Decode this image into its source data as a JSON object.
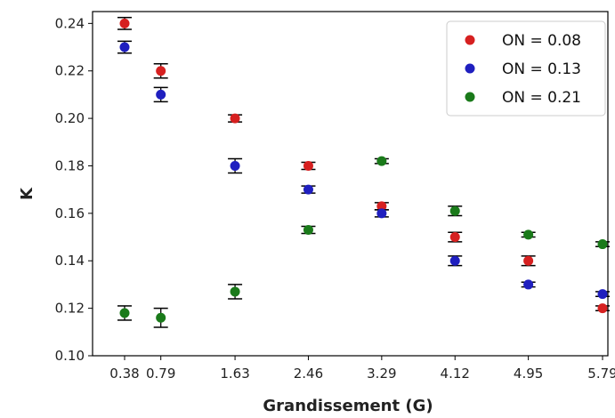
{
  "chart_data": {
    "type": "scatter",
    "xlabel": "Grandissement (G)",
    "ylabel": "K",
    "x_tick_labels": [
      "0.38",
      "0.79",
      "1.63",
      "2.46",
      "3.29",
      "4.12",
      "4.95",
      "5.79"
    ],
    "ylim": [
      0.1,
      0.245
    ],
    "y_ticks": [
      "0.10",
      "0.12",
      "0.14",
      "0.16",
      "0.18",
      "0.20",
      "0.22",
      "0.24"
    ],
    "grid": false,
    "legend_position": "top-right",
    "series": [
      {
        "name": "ON = 0.08",
        "color": "#d62020",
        "x": [
          0.38,
          0.79,
          1.63,
          2.46,
          3.29,
          4.12,
          4.95,
          5.79
        ],
        "y": [
          0.24,
          0.22,
          0.2,
          0.18,
          0.163,
          0.15,
          0.14,
          0.12
        ],
        "err": [
          0.0025,
          0.003,
          0.0015,
          0.0015,
          0.0015,
          0.002,
          0.002,
          0.001
        ]
      },
      {
        "name": "ON = 0.13",
        "color": "#1f1fbf",
        "x": [
          0.38,
          0.79,
          1.63,
          2.46,
          3.29,
          4.12,
          4.95,
          5.79
        ],
        "y": [
          0.23,
          0.21,
          0.18,
          0.17,
          0.16,
          0.14,
          0.13,
          0.126
        ],
        "err": [
          0.0025,
          0.003,
          0.003,
          0.0015,
          0.0015,
          0.002,
          0.001,
          0.001
        ]
      },
      {
        "name": "ON = 0.21",
        "color": "#1a7a1a",
        "x": [
          0.38,
          0.79,
          1.63,
          2.46,
          3.29,
          4.12,
          4.95,
          5.79
        ],
        "y": [
          0.118,
          0.116,
          0.127,
          0.153,
          0.182,
          0.161,
          0.151,
          0.147
        ],
        "err": [
          0.003,
          0.004,
          0.003,
          0.0015,
          0.001,
          0.002,
          0.001,
          0.001
        ]
      }
    ]
  }
}
